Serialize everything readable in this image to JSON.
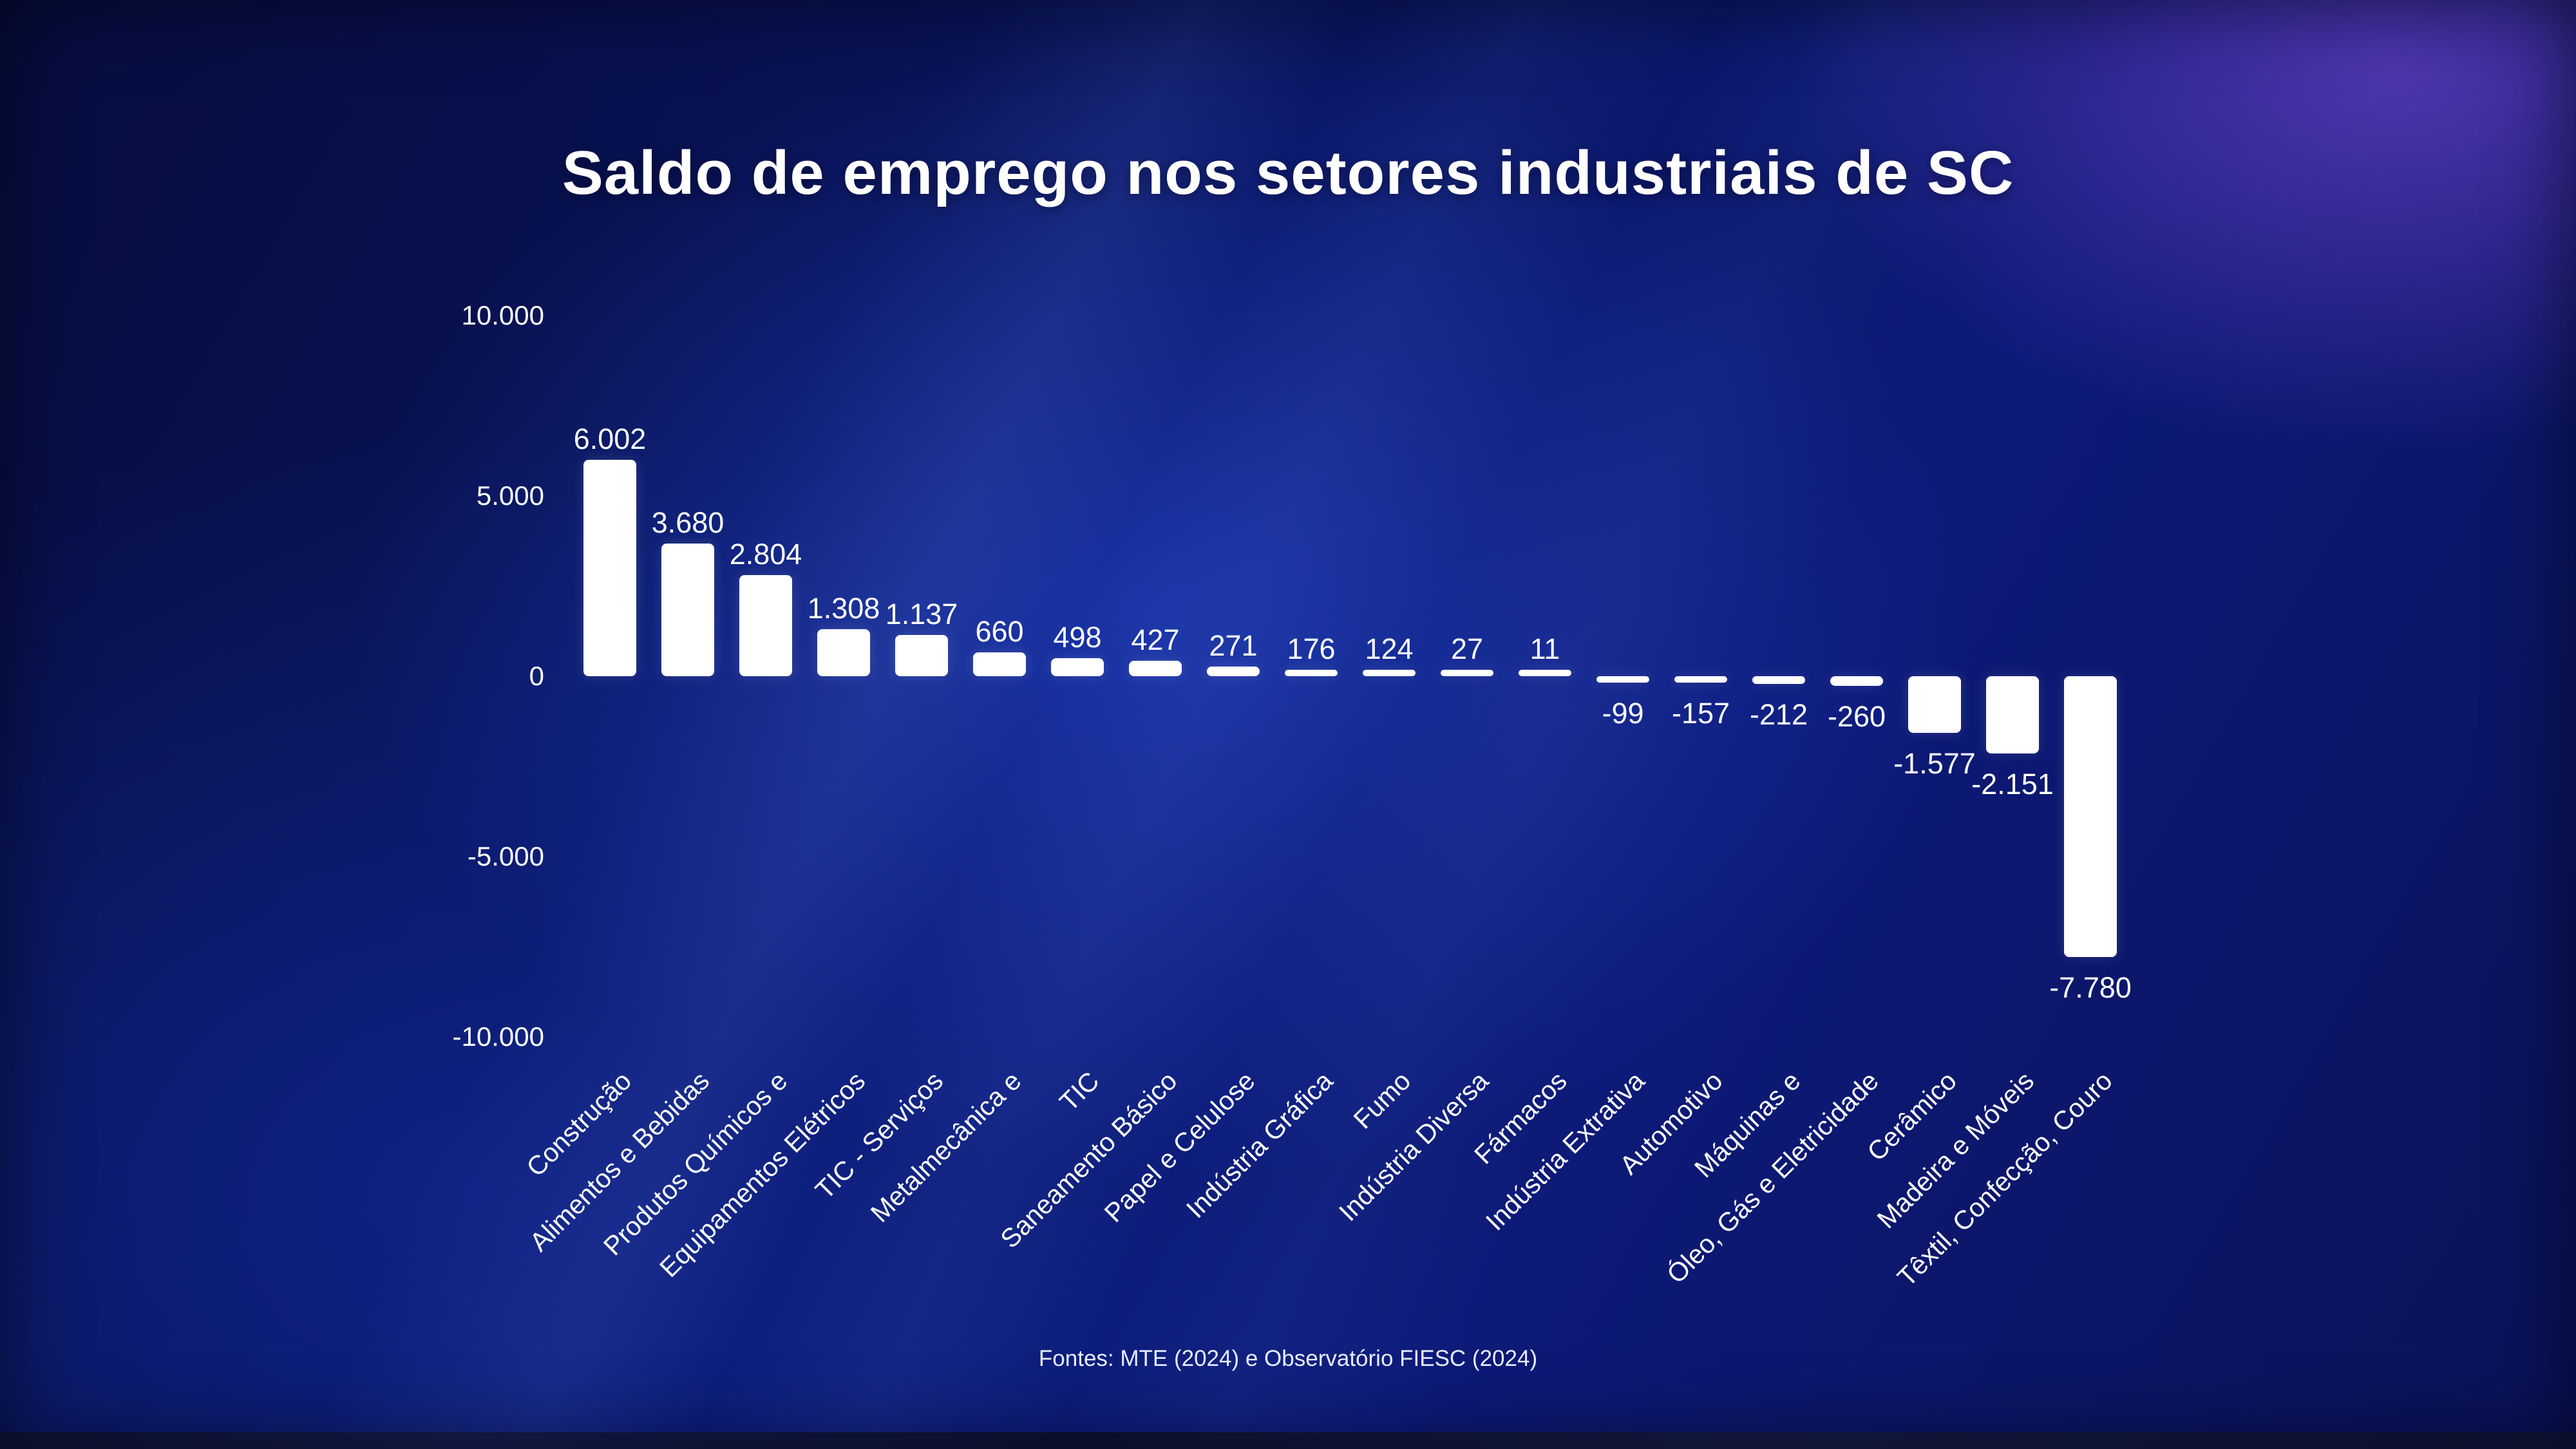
{
  "title": "Saldo de emprego nos setores industriais de SC",
  "source": "Fontes: MTE (2024) e Observatório FIESC (2024)",
  "colors": {
    "bar": "#ffffff",
    "text": "#ffffff",
    "background_deep_blue": "#0a1666",
    "background_purple_glow": "#844ee0"
  },
  "chart_data": {
    "type": "bar",
    "title": "Saldo de emprego nos setores industriais de SC",
    "xlabel": "",
    "ylabel": "",
    "ylim": [
      -10000,
      10000
    ],
    "grid": false,
    "legend": false,
    "yticks": [
      {
        "value": 10000,
        "label": "10.000"
      },
      {
        "value": 5000,
        "label": "5.000"
      },
      {
        "value": 0,
        "label": "0"
      },
      {
        "value": -5000,
        "label": "-5.000"
      },
      {
        "value": -10000,
        "label": "-10.000"
      }
    ],
    "categories": [
      "Construção",
      "Alimentos e Bebidas",
      "Produtos Químicos e",
      "Equipamentos Elétricos",
      "TIC - Serviços",
      "Metalmecânica e",
      "TIC",
      "Saneamento Básico",
      "Papel e Celulose",
      "Indústria Gráfica",
      "Fumo",
      "Indústria Diversa",
      "Fármacos",
      "Indústria Extrativa",
      "Automotivo",
      "Máquinas e",
      "Óleo, Gás e Eletricidade",
      "Cerâmico",
      "Madeira e Móveis",
      "Têxtil, Confecção, Couro"
    ],
    "values": [
      6002,
      3680,
      2804,
      1308,
      1137,
      660,
      498,
      427,
      271,
      176,
      124,
      27,
      11,
      -99,
      -157,
      -212,
      -260,
      -1577,
      -2151,
      -7780
    ],
    "value_labels": [
      "6.002",
      "3.680",
      "2.804",
      "1.308",
      "1.137",
      "660",
      "498",
      "427",
      "271",
      "176",
      "124",
      "27",
      "11",
      "-99",
      "-157",
      "-212",
      "-260",
      "-1.577",
      "-2.151",
      "-7.780"
    ]
  }
}
